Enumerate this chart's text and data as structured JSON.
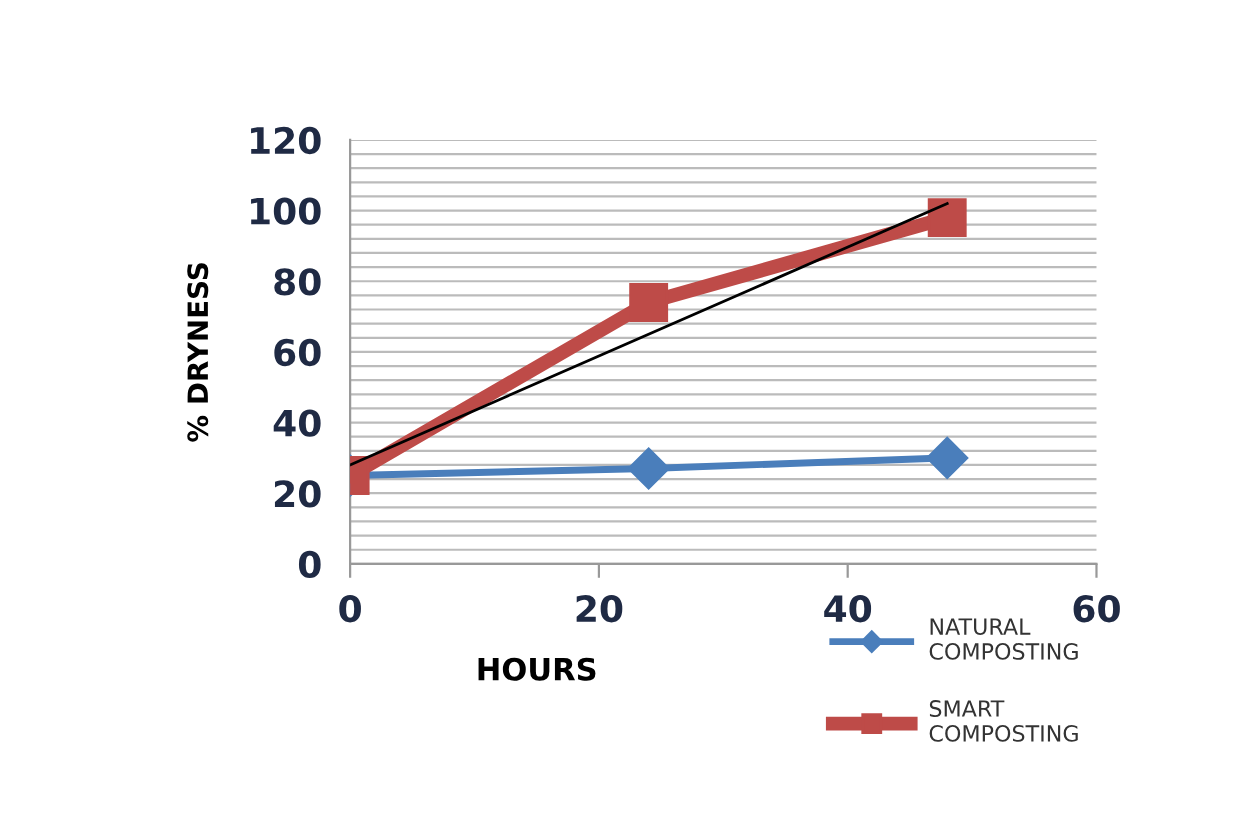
{
  "chart_data": {
    "type": "line",
    "xlabel": "HOURS",
    "ylabel": "% DRYNESS",
    "x": [
      0,
      24,
      48
    ],
    "series": [
      {
        "name": "NATURAL COMPOSTING",
        "color": "#4a7ebb",
        "values": [
          25,
          27,
          30
        ],
        "marker": "diamond"
      },
      {
        "name": "SMART COMPOSTING",
        "color": "#be4b48",
        "values": [
          25,
          74,
          98
        ],
        "marker": "square"
      },
      {
        "color": "#000000",
        "x": [
          0,
          48
        ],
        "values": [
          28,
          102
        ],
        "marker": "none"
      }
    ],
    "xlim": [
      0,
      60
    ],
    "xticks": [
      0,
      20,
      40,
      60
    ],
    "ylim": [
      0,
      120
    ],
    "yticks": [
      0,
      {
        "value": 4,
        "label": null
      },
      {
        "value": 8,
        "label": null
      },
      {
        "value": 12,
        "label": null
      },
      {
        "value": 16,
        "label": null
      },
      20,
      {
        "value": 24,
        "label": null
      },
      {
        "value": 28,
        "label": null
      },
      {
        "value": 32,
        "label": null
      },
      {
        "value": 36,
        "label": null
      },
      40,
      {
        "value": 44,
        "label": null
      },
      {
        "value": 48,
        "label": null
      },
      {
        "value": 52,
        "label": null
      },
      {
        "value": 56,
        "label": null
      },
      60,
      {
        "value": 64,
        "label": null
      },
      {
        "value": 68,
        "label": null
      },
      {
        "value": 72,
        "label": null
      },
      {
        "value": 76,
        "label": null
      },
      80,
      {
        "value": 84,
        "label": null
      },
      {
        "value": 88,
        "label": null
      },
      {
        "value": 92,
        "label": null
      },
      {
        "value": 96,
        "label": null
      },
      100,
      {
        "value": 104,
        "label": null
      },
      {
        "value": 108,
        "label": null
      },
      {
        "value": 112,
        "label": null
      },
      {
        "value": 116,
        "label": null
      },
      120
    ],
    "grid": true,
    "legend": "bottom right"
  }
}
